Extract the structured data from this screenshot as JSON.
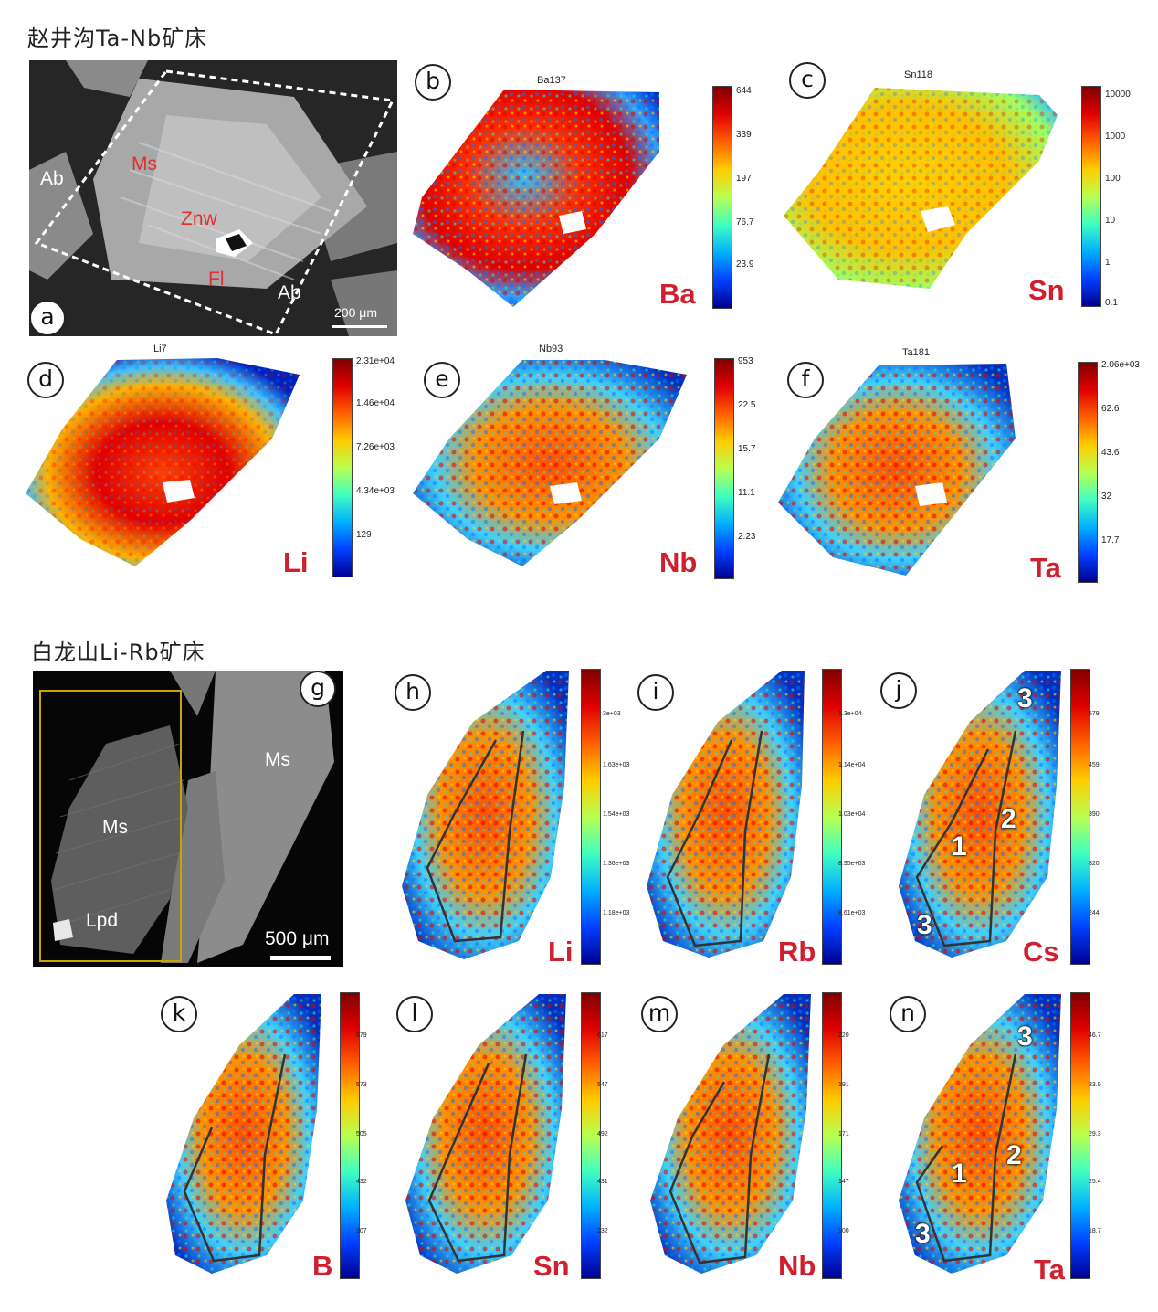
{
  "sections": {
    "top_title": "赵井沟Ta-Nb矿床",
    "bottom_title": "白龙山Li-Rb矿床"
  },
  "bse_a": {
    "letter": "a",
    "labels": {
      "ab_left": "Ab",
      "ab_right": "Ab",
      "ms": "Ms",
      "znw": "Znw",
      "fl": "Fl"
    },
    "scale": "200 μm"
  },
  "bse_g": {
    "letter": "g",
    "labels": {
      "ms_left": "Ms",
      "ms_right": "Ms",
      "lpd": "Lpd"
    },
    "scale": "500 μm"
  },
  "maps_top": [
    {
      "letter": "b",
      "title": "Ba137",
      "element": "Ba",
      "ticks": [
        "644",
        "339",
        "197",
        "76.7",
        "23.9"
      ]
    },
    {
      "letter": "c",
      "title": "Sn118",
      "element": "Sn",
      "ticks": [
        "10000",
        "1000",
        "100",
        "10",
        "1",
        "0.1"
      ]
    },
    {
      "letter": "d",
      "title": "Li7",
      "element": "Li",
      "ticks": [
        "2.31e+04",
        "1.46e+04",
        "7.26e+03",
        "4.34e+03",
        "129"
      ]
    },
    {
      "letter": "e",
      "title": "Nb93",
      "element": "Nb",
      "ticks": [
        "953",
        "22.5",
        "15.7",
        "11.1",
        "2.23"
      ]
    },
    {
      "letter": "f",
      "title": "Ta181",
      "element": "Ta",
      "ticks": [
        "2.06e+03",
        "62.6",
        "43.6",
        "32",
        "17.7"
      ]
    }
  ],
  "maps_bottom": [
    {
      "letter": "h",
      "element": "Li",
      "ticks": [
        "3e+03",
        "1.63e+03",
        "1.54e+03",
        "1.36e+03",
        "1.18e+03"
      ]
    },
    {
      "letter": "i",
      "element": "Rb",
      "ticks": [
        "1.3e+04",
        "1.14e+04",
        "1.03e+04",
        "8.95e+03",
        "8.61e+03"
      ]
    },
    {
      "letter": "j",
      "element": "Cs",
      "ticks": [
        "579",
        "459",
        "390",
        "320",
        "244"
      ],
      "zones": [
        "3",
        "1",
        "2",
        "3"
      ]
    },
    {
      "letter": "k",
      "element": "B",
      "ticks": [
        "679",
        "573",
        "505",
        "432",
        "307"
      ]
    },
    {
      "letter": "l",
      "element": "Sn",
      "ticks": [
        "617",
        "547",
        "492",
        "431",
        "232"
      ]
    },
    {
      "letter": "m",
      "element": "Nb",
      "ticks": [
        "220",
        "191",
        "171",
        "147",
        "100"
      ]
    },
    {
      "letter": "n",
      "element": "Ta",
      "ticks": [
        "46.7",
        "33.9",
        "29.3",
        "25.4",
        "18.7"
      ],
      "zones": [
        "3",
        "1",
        "2",
        "3"
      ]
    }
  ]
}
